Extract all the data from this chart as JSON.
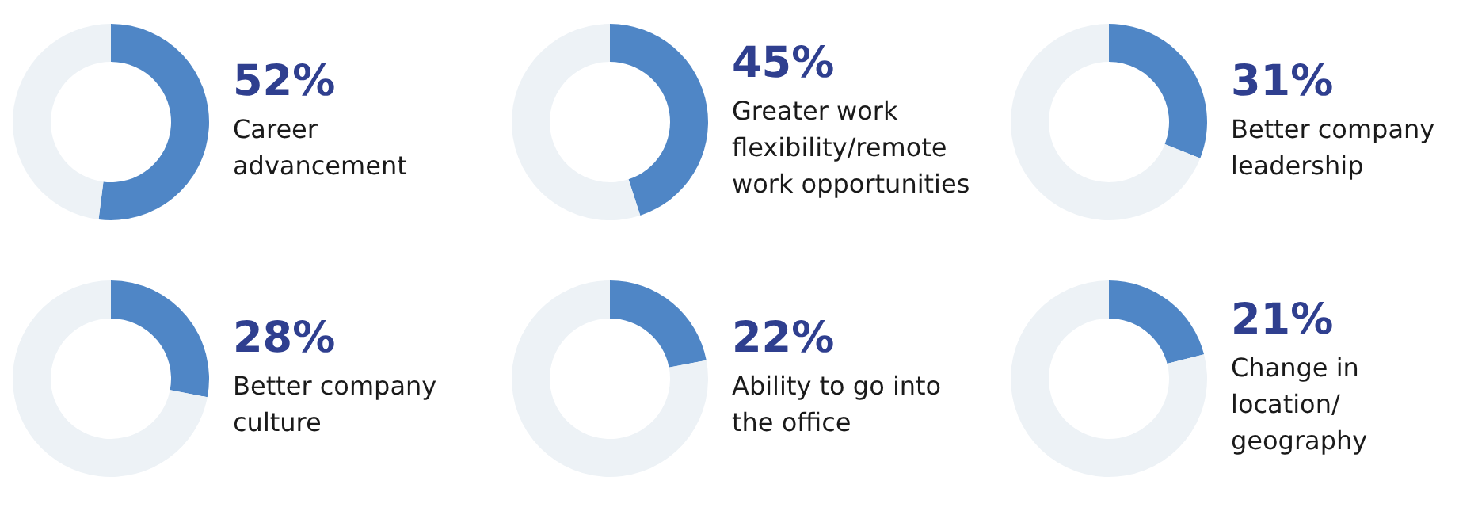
{
  "chart_data": [
    {
      "type": "donut",
      "categories": [
        "Career\nadvancement",
        null
      ],
      "values": [
        52,
        48
      ],
      "value_labels": [
        "52%",
        null
      ],
      "colors": [
        "#4f86c6",
        "#edf2f6"
      ]
    },
    {
      "type": "donut",
      "categories": [
        "Greater work\nflexibility/remote\nwork opportunities",
        null
      ],
      "values": [
        45,
        55
      ],
      "value_labels": [
        "45%",
        null
      ],
      "colors": [
        "#4f86c6",
        "#edf2f6"
      ]
    },
    {
      "type": "donut",
      "categories": [
        "Better company\nleadership",
        null
      ],
      "values": [
        31,
        69
      ],
      "value_labels": [
        "31%",
        null
      ],
      "colors": [
        "#4f86c6",
        "#edf2f6"
      ]
    },
    {
      "type": "donut",
      "categories": [
        "Better company\nculture",
        null
      ],
      "values": [
        28,
        72
      ],
      "value_labels": [
        "28%",
        null
      ],
      "colors": [
        "#4f86c6",
        "#edf2f6"
      ]
    },
    {
      "type": "donut",
      "categories": [
        "Ability to go into\nthe office",
        null
      ],
      "values": [
        22,
        78
      ],
      "value_labels": [
        "22%",
        null
      ],
      "colors": [
        "#4f86c6",
        "#edf2f6"
      ]
    },
    {
      "type": "donut",
      "categories": [
        "Change in\nlocation/\ngeography",
        null
      ],
      "values": [
        21,
        79
      ],
      "value_labels": [
        "21%",
        null
      ],
      "colors": [
        "#4f86c6",
        "#edf2f6"
      ]
    }
  ]
}
